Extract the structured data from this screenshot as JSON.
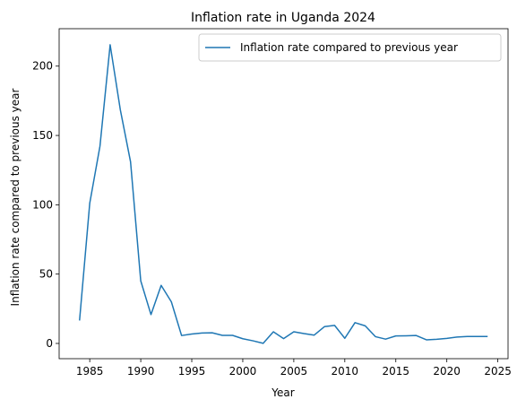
{
  "chart_data": {
    "type": "line",
    "title": "Inflation rate in Uganda 2024",
    "xlabel": "Year",
    "ylabel": "Inflation rate compared to previous year",
    "xlim": [
      1982,
      2026
    ],
    "ylim": [
      -11,
      227
    ],
    "xticks": [
      1985,
      1990,
      1995,
      2000,
      2005,
      2010,
      2015,
      2020,
      2025
    ],
    "yticks": [
      0,
      50,
      100,
      150,
      200
    ],
    "grid": false,
    "legend_position": "top-right",
    "series": [
      {
        "name": "Inflation rate compared to previous year",
        "color": "#1f77b4",
        "x": [
          1984,
          1985,
          1986,
          1987,
          1988,
          1989,
          1990,
          1991,
          1992,
          1993,
          1994,
          1995,
          1996,
          1997,
          1998,
          1999,
          2000,
          2001,
          2002,
          2003,
          2004,
          2005,
          2006,
          2007,
          2008,
          2009,
          2010,
          2011,
          2012,
          2013,
          2014,
          2015,
          2016,
          2017,
          2018,
          2019,
          2020,
          2021,
          2022,
          2023,
          2024
        ],
        "values": [
          16.5,
          101.1,
          142.2,
          215.4,
          168.4,
          131.0,
          45.1,
          20.8,
          41.9,
          30.0,
          5.7,
          6.8,
          7.5,
          7.7,
          5.8,
          5.8,
          3.4,
          1.9,
          0.1,
          8.4,
          3.5,
          8.4,
          7.1,
          6.0,
          12.1,
          13.0,
          3.7,
          15.0,
          12.7,
          4.9,
          3.1,
          5.4,
          5.5,
          5.7,
          2.6,
          3.0,
          3.6,
          4.6,
          5.0,
          5.0,
          5.0
        ]
      }
    ]
  }
}
